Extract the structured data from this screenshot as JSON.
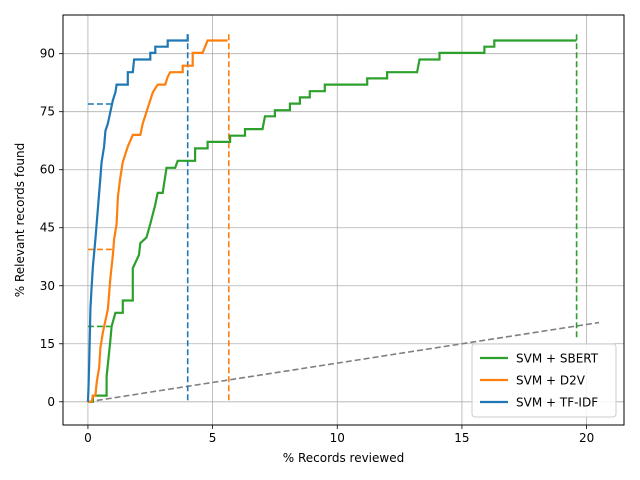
{
  "chart_data": {
    "type": "line",
    "title": "",
    "xlabel": "% Records reviewed",
    "ylabel": "% Relevant records found",
    "xlim": [
      -1.0,
      21.5
    ],
    "ylim": [
      -6.0,
      100.0
    ],
    "xticks": [
      0,
      5,
      10,
      15,
      20
    ],
    "yticks": [
      0,
      15,
      30,
      45,
      60,
      75,
      90
    ],
    "grid": true,
    "legend_position": "lower right",
    "series": [
      {
        "name": "SVM + SBERT",
        "color": "#2ca02c",
        "style": "solid",
        "points": [
          [
            0,
            0
          ],
          [
            0.2,
            0
          ],
          [
            0.2,
            1.6
          ],
          [
            0.75,
            1.6
          ],
          [
            0.75,
            6.5
          ],
          [
            0.9,
            16
          ],
          [
            0.95,
            19.5
          ],
          [
            1.1,
            23
          ],
          [
            1.4,
            23
          ],
          [
            1.4,
            26.2
          ],
          [
            1.8,
            26.2
          ],
          [
            1.8,
            34.5
          ],
          [
            2.05,
            38
          ],
          [
            2.1,
            41
          ],
          [
            2.35,
            42.5
          ],
          [
            2.5,
            46
          ],
          [
            2.7,
            51
          ],
          [
            2.8,
            54
          ],
          [
            3.0,
            54
          ],
          [
            3.15,
            60.5
          ],
          [
            3.5,
            60.5
          ],
          [
            3.6,
            62.3
          ],
          [
            4.3,
            62.3
          ],
          [
            4.3,
            65.5
          ],
          [
            4.8,
            65.5
          ],
          [
            4.8,
            67.2
          ],
          [
            5.7,
            67.2
          ],
          [
            5.7,
            68.8
          ],
          [
            6.3,
            68.8
          ],
          [
            6.3,
            70.5
          ],
          [
            7.0,
            70.5
          ],
          [
            7.1,
            73.8
          ],
          [
            7.5,
            73.8
          ],
          [
            7.5,
            75.4
          ],
          [
            8.1,
            75.4
          ],
          [
            8.1,
            77.1
          ],
          [
            8.5,
            77.1
          ],
          [
            8.5,
            78.7
          ],
          [
            8.9,
            78.7
          ],
          [
            8.9,
            80.3
          ],
          [
            9.5,
            80.3
          ],
          [
            9.5,
            82
          ],
          [
            11.2,
            82
          ],
          [
            11.2,
            83.6
          ],
          [
            12.0,
            83.6
          ],
          [
            12.0,
            85.2
          ],
          [
            13.2,
            85.2
          ],
          [
            13.3,
            88.5
          ],
          [
            14.1,
            88.5
          ],
          [
            14.1,
            90.2
          ],
          [
            15.9,
            90.2
          ],
          [
            15.9,
            91.8
          ],
          [
            16.3,
            91.8
          ],
          [
            16.3,
            93.4
          ],
          [
            19.6,
            93.4
          ]
        ]
      },
      {
        "name": "SVM + D2V",
        "color": "#ff7f0e",
        "style": "solid",
        "points": [
          [
            0,
            0
          ],
          [
            0.15,
            0
          ],
          [
            0.2,
            1.6
          ],
          [
            0.3,
            1.6
          ],
          [
            0.35,
            5
          ],
          [
            0.45,
            9
          ],
          [
            0.5,
            14
          ],
          [
            0.6,
            18
          ],
          [
            0.7,
            21
          ],
          [
            0.8,
            24
          ],
          [
            0.9,
            32
          ],
          [
            1.0,
            38
          ],
          [
            1.05,
            42
          ],
          [
            1.15,
            46
          ],
          [
            1.2,
            53
          ],
          [
            1.3,
            58
          ],
          [
            1.4,
            62
          ],
          [
            1.5,
            64
          ],
          [
            1.6,
            66
          ],
          [
            1.8,
            69
          ],
          [
            2.1,
            69
          ],
          [
            2.2,
            72
          ],
          [
            2.3,
            74
          ],
          [
            2.4,
            76
          ],
          [
            2.5,
            78
          ],
          [
            2.6,
            80
          ],
          [
            2.8,
            82
          ],
          [
            3.1,
            82
          ],
          [
            3.2,
            84
          ],
          [
            3.3,
            85.2
          ],
          [
            3.8,
            85.2
          ],
          [
            3.8,
            86.9
          ],
          [
            4.2,
            86.9
          ],
          [
            4.2,
            90.2
          ],
          [
            4.6,
            90.2
          ],
          [
            4.7,
            91.8
          ],
          [
            4.8,
            93.4
          ],
          [
            5.6,
            93.4
          ]
        ]
      },
      {
        "name": "SVM + TF-IDF",
        "color": "#1f77b4",
        "style": "solid",
        "points": [
          [
            0,
            0
          ],
          [
            0.02,
            3
          ],
          [
            0.05,
            10
          ],
          [
            0.08,
            18
          ],
          [
            0.1,
            24
          ],
          [
            0.15,
            30
          ],
          [
            0.2,
            35
          ],
          [
            0.3,
            42
          ],
          [
            0.4,
            50
          ],
          [
            0.5,
            58
          ],
          [
            0.55,
            62
          ],
          [
            0.65,
            66
          ],
          [
            0.7,
            70
          ],
          [
            0.8,
            72
          ],
          [
            0.9,
            75
          ],
          [
            1.0,
            78
          ],
          [
            1.1,
            80
          ],
          [
            1.15,
            82
          ],
          [
            1.6,
            82
          ],
          [
            1.6,
            85.2
          ],
          [
            1.8,
            85.2
          ],
          [
            1.85,
            88.5
          ],
          [
            2.5,
            88.5
          ],
          [
            2.5,
            90.2
          ],
          [
            2.7,
            90.2
          ],
          [
            2.7,
            91.8
          ],
          [
            3.2,
            91.8
          ],
          [
            3.2,
            93.4
          ],
          [
            4.0,
            93.4
          ],
          [
            4.0,
            95
          ]
        ]
      },
      {
        "name": "",
        "color": "#808080",
        "style": "dashed",
        "points": [
          [
            0,
            0
          ],
          [
            20.5,
            20.5
          ]
        ]
      },
      {
        "name": "",
        "color": "#2ca02c",
        "style": "dashed",
        "points": [
          [
            0,
            19.5
          ],
          [
            0.9,
            19.5
          ]
        ]
      },
      {
        "name": "",
        "color": "#2ca02c",
        "style": "dashed",
        "points": [
          [
            19.6,
            95
          ],
          [
            19.6,
            16.5
          ]
        ]
      },
      {
        "name": "",
        "color": "#ff7f0e",
        "style": "dashed",
        "points": [
          [
            0,
            39.4
          ],
          [
            1.0,
            39.4
          ]
        ]
      },
      {
        "name": "",
        "color": "#ff7f0e",
        "style": "dashed",
        "points": [
          [
            5.65,
            95
          ],
          [
            5.65,
            0
          ]
        ]
      },
      {
        "name": "",
        "color": "#1f77b4",
        "style": "dashed",
        "points": [
          [
            0,
            77
          ],
          [
            1.0,
            77
          ]
        ]
      },
      {
        "name": "",
        "color": "#1f77b4",
        "style": "dashed",
        "points": [
          [
            4.0,
            95
          ],
          [
            4.0,
            0
          ]
        ]
      }
    ],
    "legend": [
      {
        "label": "SVM + SBERT",
        "color": "#2ca02c"
      },
      {
        "label": "SVM + D2V",
        "color": "#ff7f0e"
      },
      {
        "label": "SVM + TF-IDF",
        "color": "#1f77b4"
      }
    ]
  }
}
